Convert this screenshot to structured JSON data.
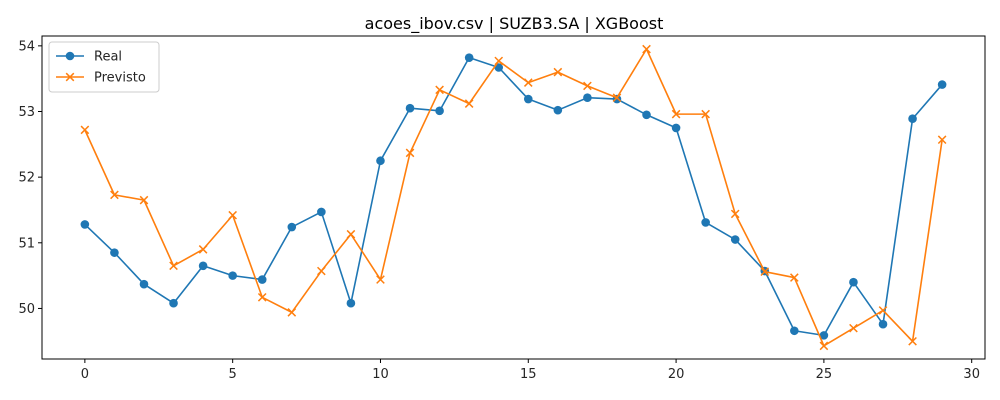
{
  "chart_data": {
    "type": "line",
    "title": "acoes_ibov.csv | SUZB3.SA | XGBoost",
    "xlabel": "",
    "ylabel": "",
    "x": [
      0,
      1,
      2,
      3,
      4,
      5,
      6,
      7,
      8,
      9,
      10,
      11,
      12,
      13,
      14,
      15,
      16,
      17,
      18,
      19,
      20,
      21,
      22,
      23,
      24,
      25,
      26,
      27,
      28,
      29
    ],
    "xlim": [
      -1.45,
      30.45
    ],
    "ylim": [
      49.23,
      54.15
    ],
    "xticks": [
      0,
      5,
      10,
      15,
      20,
      25,
      30
    ],
    "yticks": [
      50,
      51,
      52,
      53,
      54
    ],
    "grid": false,
    "legend_position": "upper-left",
    "series": [
      {
        "name": "Real",
        "color": "#1f77b4",
        "marker": "circle",
        "values": [
          51.28,
          50.85,
          50.37,
          50.08,
          50.65,
          50.5,
          50.44,
          51.24,
          51.47,
          50.08,
          52.25,
          53.05,
          53.01,
          53.82,
          53.67,
          53.19,
          53.02,
          53.21,
          53.19,
          52.95,
          52.75,
          51.31,
          51.05,
          50.57,
          49.66,
          49.59,
          50.4,
          49.76,
          52.89,
          53.41
        ]
      },
      {
        "name": "Previsto",
        "color": "#ff7f0e",
        "marker": "x",
        "values": [
          52.72,
          51.73,
          51.65,
          50.65,
          50.9,
          51.42,
          50.17,
          49.94,
          50.57,
          51.13,
          50.44,
          52.37,
          53.33,
          53.12,
          53.77,
          53.44,
          53.6,
          53.39,
          53.21,
          53.95,
          52.96,
          52.96,
          51.44,
          50.56,
          50.47,
          49.43,
          49.7,
          49.97,
          49.5,
          52.57
        ]
      }
    ]
  }
}
